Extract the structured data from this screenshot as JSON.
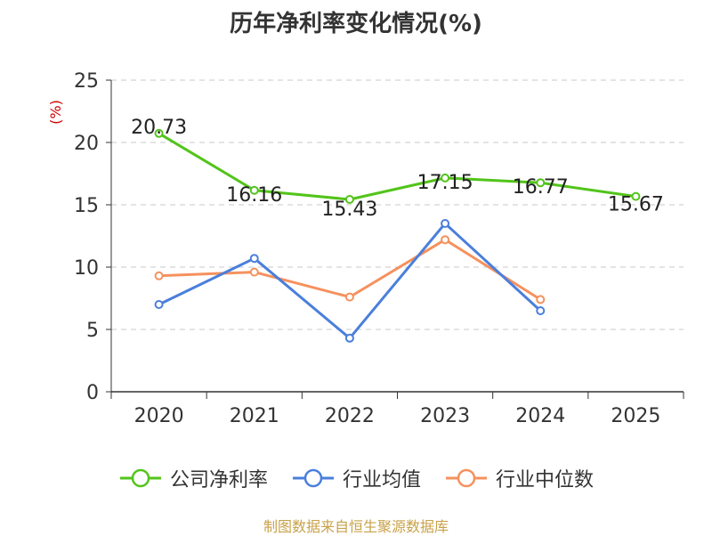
{
  "chart_data": {
    "type": "line",
    "title": "历年净利率变化情况(%)",
    "ylabel": "(%)",
    "xlabel": "",
    "categories": [
      "2020",
      "2021",
      "2022",
      "2023",
      "2024",
      "2025"
    ],
    "ylim": [
      0,
      25
    ],
    "yticks": [
      "0",
      "5",
      "10",
      "15",
      "20",
      "25"
    ],
    "grid": true,
    "legend_position": "bottom",
    "series": [
      {
        "name": "公司净利率",
        "color": "#52c41a",
        "values": [
          20.73,
          16.16,
          15.43,
          17.15,
          16.77,
          15.67
        ],
        "labels": [
          "20.73",
          "16.16",
          "15.43",
          "17.15",
          "16.77",
          "15.67"
        ]
      },
      {
        "name": "行业均值",
        "color": "#4a7fdc",
        "values": [
          7.0,
          10.7,
          4.3,
          13.5,
          6.5,
          null
        ]
      },
      {
        "name": "行业中位数",
        "color": "#f5915e",
        "values": [
          9.3,
          9.6,
          7.6,
          12.2,
          7.4,
          null
        ]
      }
    ]
  },
  "footer": {
    "source": "制图数据来自恒生聚源数据库"
  }
}
